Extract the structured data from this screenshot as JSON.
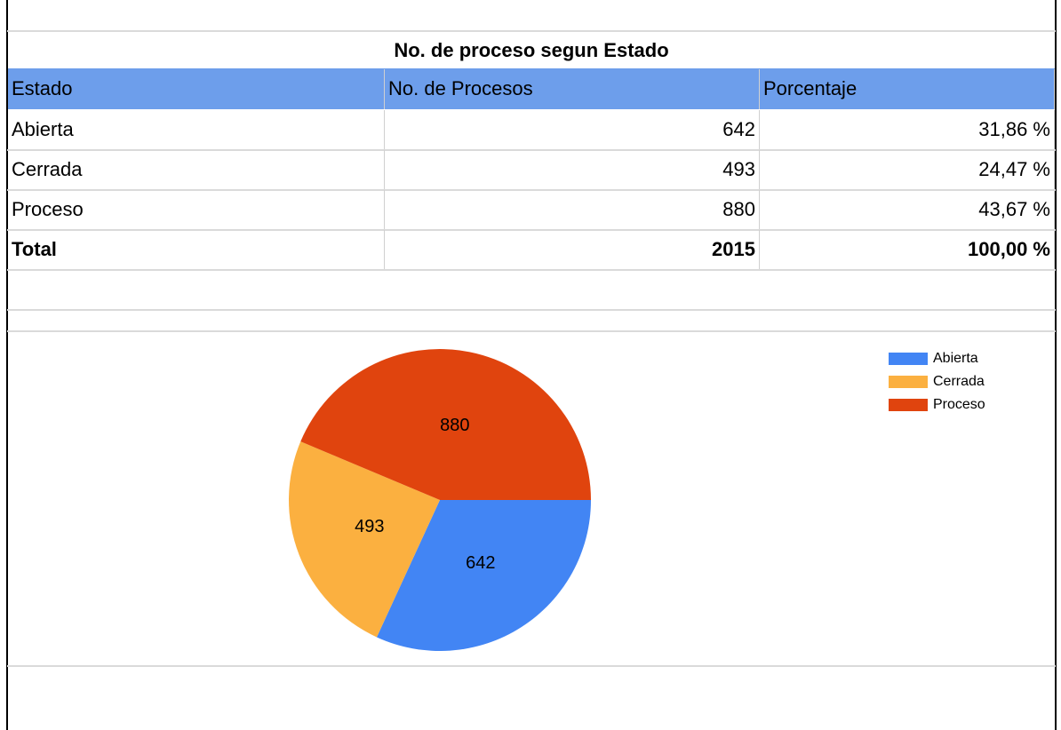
{
  "table": {
    "title": "No. de proceso segun Estado",
    "header": [
      "Estado",
      "No. de Procesos",
      "Porcentaje"
    ],
    "rows": [
      [
        "Abierta",
        "642",
        "31,86 %"
      ],
      [
        "Cerrada",
        "493",
        "24,47 %"
      ],
      [
        "Proceso",
        "880",
        "43,67 %"
      ],
      [
        "Total",
        "2015",
        "100,00 %"
      ]
    ]
  },
  "chart_data": {
    "type": "pie",
    "categories": [
      "Abierta",
      "Cerrada",
      "Proceso"
    ],
    "values": [
      642,
      493,
      880
    ],
    "colors": [
      "#4285f4",
      "#fbb040",
      "#e0440e"
    ],
    "legend": "right"
  }
}
